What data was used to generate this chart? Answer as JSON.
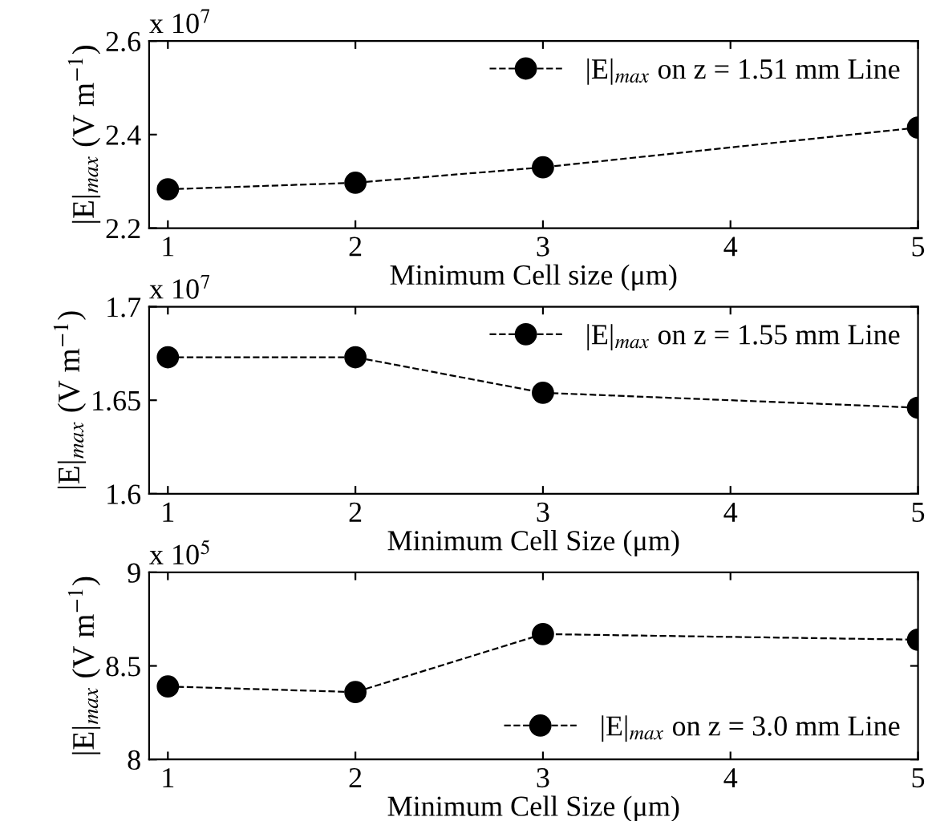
{
  "chart_data": [
    {
      "type": "line",
      "xlabel": "Minimum Cell size (μm)",
      "ylabel": "|E|$_{max}$ (V m$^{−1}$)",
      "annotations": [
        "x 10$^{7}$"
      ],
      "x": [
        1,
        2,
        3,
        5
      ],
      "xlim": [
        0.9,
        5
      ],
      "xticks": [
        1,
        2,
        3,
        4,
        5
      ],
      "ylim": [
        2.2,
        2.6
      ],
      "yticks": [
        2.2,
        2.4,
        2.6
      ],
      "legend": "top right",
      "marker": "circle",
      "line_style": "dashed",
      "grid": false,
      "series": [
        {
          "name": "|E|$_{max}$ on z = 1.51 mm Line",
          "color": "#000000",
          "values": [
            2.283,
            2.297,
            2.33,
            2.415
          ]
        }
      ]
    },
    {
      "type": "line",
      "xlabel": "Minimum Cell Size (μm)",
      "ylabel": "|E|$_{max}$ (V m$^{−1}$)",
      "annotations": [
        "x 10$^{7}$"
      ],
      "x": [
        1,
        2,
        3,
        5
      ],
      "xlim": [
        0.9,
        5
      ],
      "xticks": [
        1,
        2,
        3,
        4,
        5
      ],
      "ylim": [
        1.6,
        1.7
      ],
      "yticks": [
        1.6,
        1.65,
        1.7
      ],
      "legend": "top right",
      "marker": "circle",
      "line_style": "dashed",
      "grid": false,
      "series": [
        {
          "name": "|E|$_{max}$ on z = 1.55 mm Line",
          "color": "#000000",
          "values": [
            1.673,
            1.673,
            1.654,
            1.646
          ]
        }
      ]
    },
    {
      "type": "line",
      "xlabel": "Minimum Cell Size (μm)",
      "ylabel": "|E|$_{max}$ (V m$^{−1}$)",
      "annotations": [
        "x 10$^{5}$"
      ],
      "x": [
        1,
        2,
        3,
        5
      ],
      "xlim": [
        0.9,
        5
      ],
      "xticks": [
        1,
        2,
        3,
        4,
        5
      ],
      "ylim": [
        8,
        9
      ],
      "yticks": [
        8,
        8.5,
        9
      ],
      "legend": "bottom right",
      "marker": "circle",
      "line_style": "dashed",
      "grid": false,
      "series": [
        {
          "name": "|E|$_{max}$ on z = 3.0 mm Line",
          "color": "#000000",
          "values": [
            8.39,
            8.36,
            8.67,
            8.64
          ]
        }
      ]
    }
  ]
}
